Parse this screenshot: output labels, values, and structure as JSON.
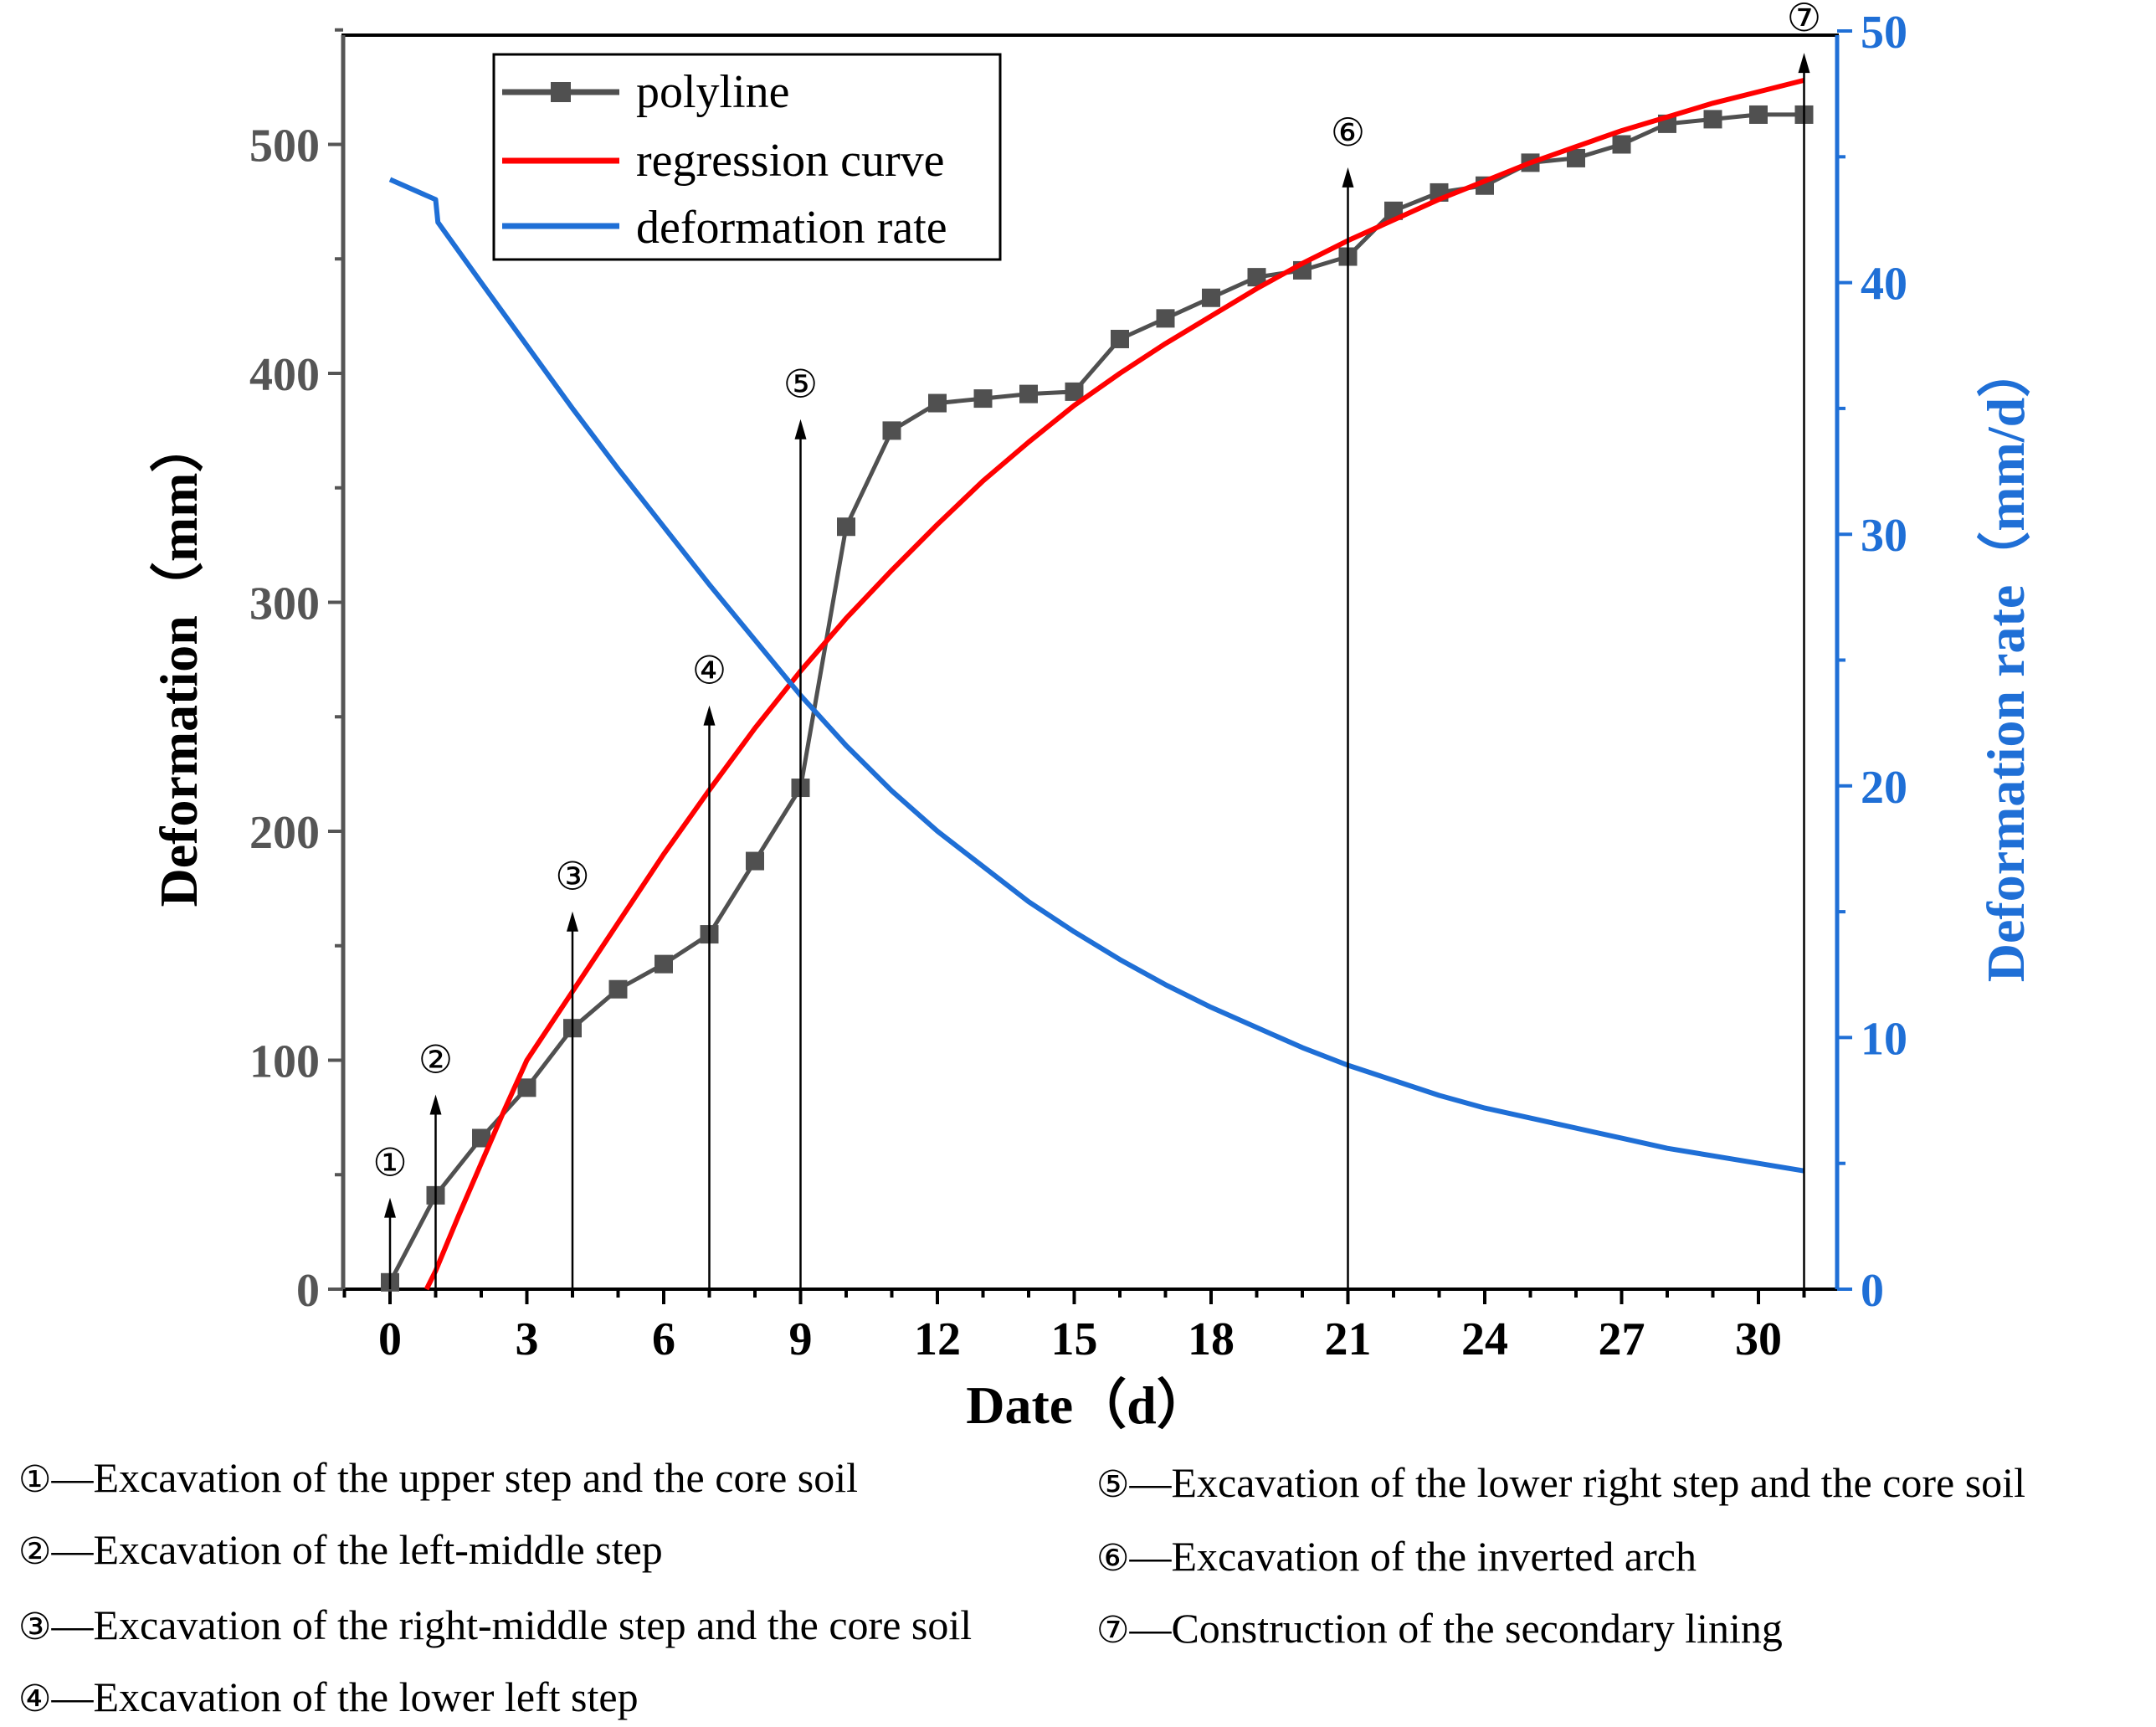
{
  "chart_data": {
    "type": "line",
    "title": "",
    "xlabel": "Date（d）",
    "ylabel": "Deformation（mm）",
    "ylabel_right": "Deformation rate（mm/d）",
    "xlim": [
      -1,
      32
    ],
    "ylim": [
      0,
      550
    ],
    "ylim_right": [
      0,
      50
    ],
    "x_ticks": [
      0,
      3,
      6,
      9,
      12,
      15,
      18,
      21,
      24,
      27,
      30
    ],
    "x_tick_labels": [
      "0",
      "3",
      "6",
      "9",
      "12",
      "15",
      "18",
      "21",
      "24",
      "27",
      "30"
    ],
    "y_ticks": [
      0,
      100,
      200,
      300,
      400,
      500
    ],
    "y_tick_labels": [
      "0",
      "100",
      "200",
      "300",
      "400",
      "500"
    ],
    "y_right_ticks": [
      0,
      10,
      20,
      30,
      40,
      50
    ],
    "y_right_tick_labels": [
      "0",
      "10",
      "20",
      "30",
      "40",
      "50"
    ],
    "legend": {
      "position": "top-left",
      "entries": [
        "polyline",
        "regression curve",
        "deformation rate"
      ]
    },
    "series": [
      {
        "name": "polyline",
        "color": "#505050",
        "axis": "left",
        "marker": "square",
        "x": [
          0,
          1,
          2,
          3,
          4,
          5,
          6,
          7,
          8,
          9,
          10,
          11,
          12,
          13,
          14,
          15,
          16,
          17,
          18,
          19,
          20,
          21,
          22,
          23,
          24,
          25,
          26,
          27,
          28,
          29,
          30,
          31
        ],
        "values": [
          3,
          41,
          66,
          88,
          114,
          131,
          142,
          155,
          187,
          219,
          333,
          375,
          387,
          389,
          391,
          392,
          415,
          424,
          433,
          442,
          445,
          451,
          471,
          479,
          482,
          492,
          494,
          500,
          509,
          511,
          513,
          513
        ]
      },
      {
        "name": "regression curve",
        "color": "#ff0000",
        "axis": "left",
        "x": [
          0.8,
          1,
          1.5,
          2,
          2.5,
          3,
          4,
          5,
          6,
          7,
          8,
          9,
          10,
          11,
          12,
          13,
          14,
          15,
          16,
          17,
          18,
          19,
          20,
          21,
          22,
          23,
          24,
          25,
          26,
          27,
          28,
          29,
          30,
          31
        ],
        "values": [
          0,
          8,
          32,
          55,
          78,
          100,
          130,
          160,
          190,
          218,
          245,
          270,
          293,
          314,
          334,
          353,
          370,
          386,
          400,
          413,
          425,
          437,
          448,
          458,
          467,
          476,
          484,
          492,
          499,
          506,
          512,
          518,
          523,
          528
        ]
      },
      {
        "name": "deformation rate",
        "color": "#1f6fd6",
        "axis": "right",
        "x": [
          0,
          1,
          1.05,
          2,
          3,
          4,
          5,
          6,
          7,
          8,
          9,
          10,
          11,
          12,
          13,
          14,
          15,
          16,
          17,
          18,
          19,
          20,
          21,
          22,
          23,
          24,
          25,
          26,
          27,
          28,
          29,
          30,
          31
        ],
        "values": [
          44.1,
          43.3,
          42.4,
          40.0,
          37.5,
          35.0,
          32.6,
          30.3,
          28.0,
          25.8,
          23.6,
          21.6,
          19.8,
          18.2,
          16.8,
          15.4,
          14.2,
          13.1,
          12.1,
          11.2,
          10.4,
          9.6,
          8.9,
          8.3,
          7.7,
          7.2,
          6.8,
          6.4,
          6.0,
          5.6,
          5.3,
          5.0,
          4.7
        ]
      }
    ],
    "annotations": [
      {
        "label": "①",
        "x": 0,
        "arrow_top": 40
      },
      {
        "label": "②",
        "x": 1,
        "arrow_top": 85
      },
      {
        "label": "③",
        "x": 4,
        "arrow_top": 165
      },
      {
        "label": "④",
        "x": 7,
        "arrow_top": 255
      },
      {
        "label": "⑤",
        "x": 9,
        "arrow_top": 380
      },
      {
        "label": "⑥",
        "x": 21,
        "arrow_top": 490
      },
      {
        "label": "⑦",
        "x": 31,
        "arrow_top": 540
      }
    ]
  },
  "notes": [
    {
      "num": "①",
      "text": "—Excavation of the upper step and the core soil"
    },
    {
      "num": "②",
      "text": "—Excavation of the left-middle step"
    },
    {
      "num": "③",
      "text": "—Excavation of the right-middle step and the core soil"
    },
    {
      "num": "④",
      "text": "—Excavation of the lower left step"
    },
    {
      "num": "⑤",
      "text": "—Excavation of the lower right step and the core soil"
    },
    {
      "num": "⑥",
      "text": "—Excavation of the inverted arch"
    },
    {
      "num": "⑦",
      "text": "—Construction of the secondary lining"
    }
  ],
  "colors": {
    "axis_left": "#555555",
    "axis_right": "#1f6fd6",
    "polyline": "#505050",
    "regression": "#ff0000",
    "rate": "#1f6fd6"
  }
}
